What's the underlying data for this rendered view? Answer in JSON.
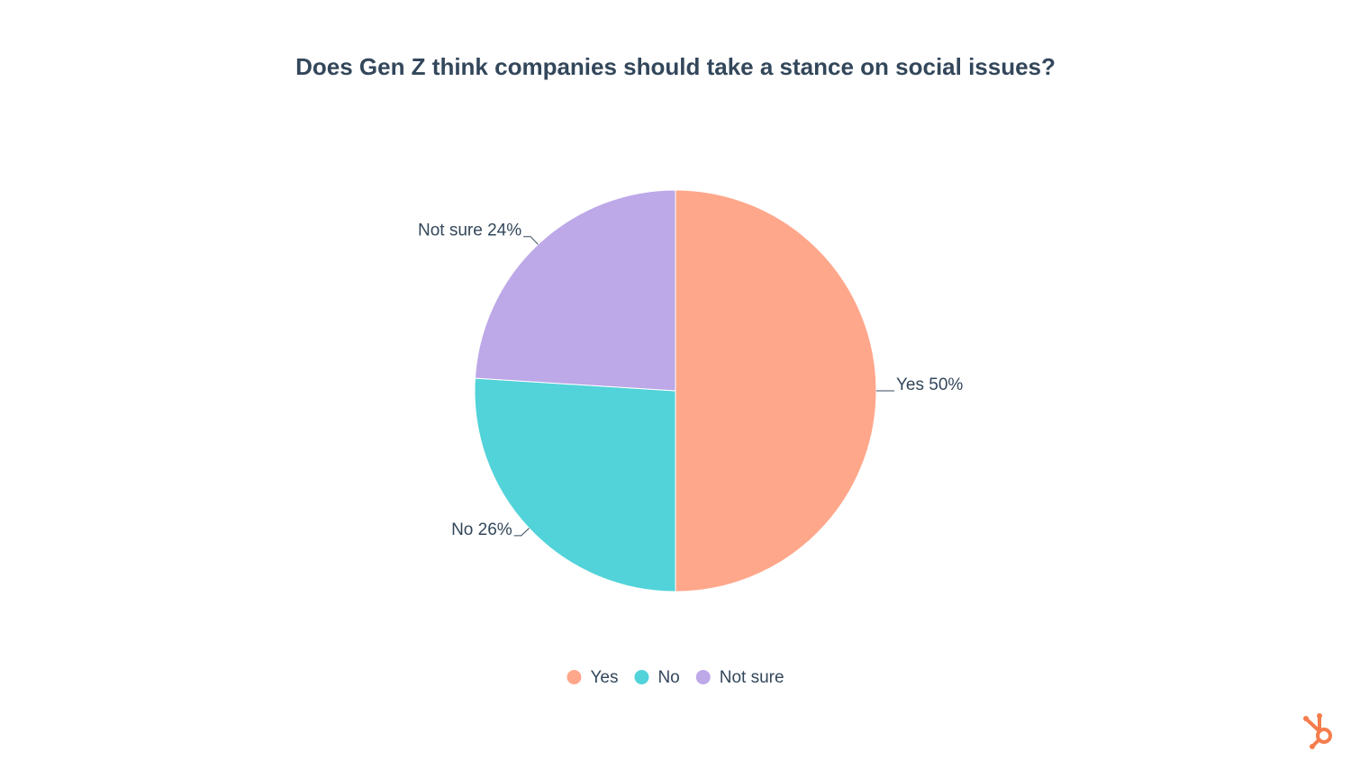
{
  "chart_data": {
    "type": "pie",
    "title": "Does Gen Z think companies should take a stance on social issues?",
    "categories": [
      "Yes",
      "No",
      "Not sure"
    ],
    "values": [
      50,
      26,
      24
    ],
    "value_labels": [
      "Yes 50%",
      "No 26%",
      "Not sure 24%"
    ],
    "colors": [
      "#ffa78b",
      "#51d3d9",
      "#bda8e8"
    ],
    "legend": "bottom"
  }
}
